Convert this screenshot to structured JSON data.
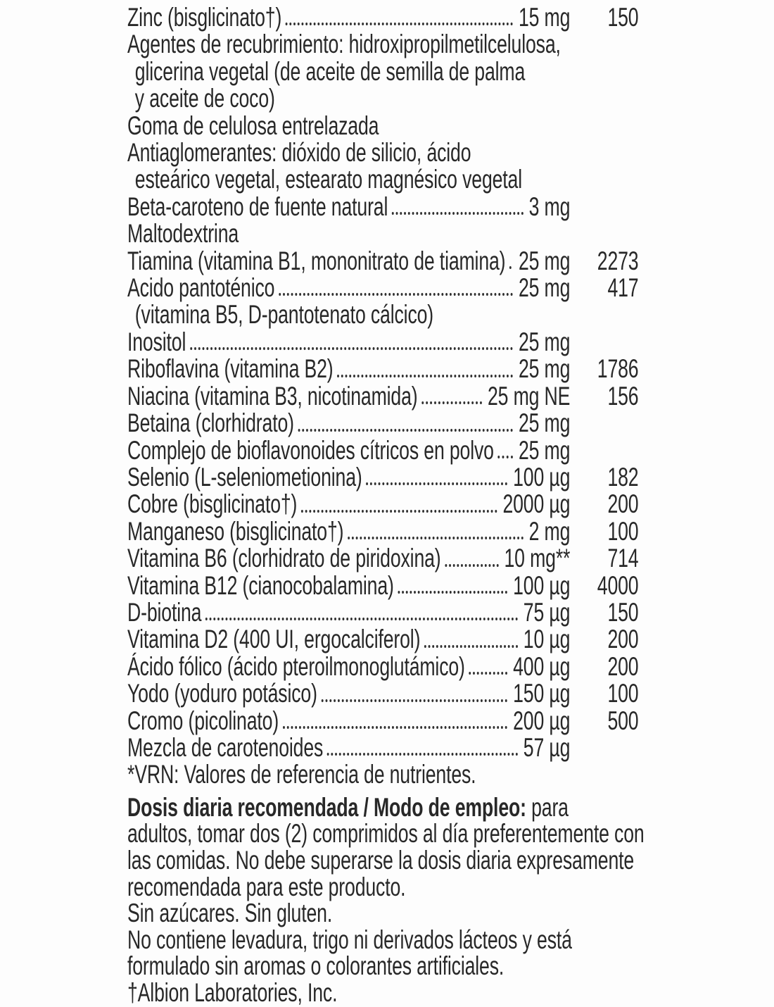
{
  "colors": {
    "text": "#282828",
    "background": "#fdfdfd"
  },
  "label": {
    "rows": [
      {
        "name": "Zinc (bisglicinato†)",
        "amount": "15 mg",
        "vrn": "150",
        "dots": true,
        "indent": false
      },
      {
        "name": "Agentes de recubrimiento: hidroxipropilmetilcelulosa,",
        "amount": "",
        "vrn": "",
        "dots": false,
        "indent": false
      },
      {
        "name": "glicerina vegetal (de aceite de semilla de palma",
        "amount": "",
        "vrn": "",
        "dots": false,
        "indent": true
      },
      {
        "name": "y aceite de coco)",
        "amount": "",
        "vrn": "",
        "dots": false,
        "indent": true
      },
      {
        "name": "Goma de celulosa entrelazada",
        "amount": "",
        "vrn": "",
        "dots": false,
        "indent": false
      },
      {
        "name": "Antiaglomerantes: dióxido de silicio, ácido",
        "amount": "",
        "vrn": "",
        "dots": false,
        "indent": false
      },
      {
        "name": "esteárico vegetal, estearato magnésico vegetal",
        "amount": "",
        "vrn": "",
        "dots": false,
        "indent": true
      },
      {
        "name": "Beta-caroteno de fuente natural",
        "amount": "3 mg",
        "vrn": "",
        "dots": true,
        "indent": false
      },
      {
        "name": "Maltodextrina",
        "amount": "",
        "vrn": "",
        "dots": false,
        "indent": false
      },
      {
        "name": "Tiamina (vitamina B1, mononitrato de tiamina)",
        "amount": "25 mg",
        "vrn": "2273",
        "dots": true,
        "indent": false
      },
      {
        "name": "Acido pantoténico",
        "amount": "25 mg",
        "vrn": "417",
        "dots": true,
        "indent": false
      },
      {
        "name": "(vitamina B5, D-pantotenato cálcico)",
        "amount": "",
        "vrn": "",
        "dots": false,
        "indent": true
      },
      {
        "name": "Inositol",
        "amount": "25 mg",
        "vrn": "",
        "dots": true,
        "indent": false
      },
      {
        "name": "Riboflavina (vitamina B2)",
        "amount": "25 mg",
        "vrn": "1786",
        "dots": true,
        "indent": false
      },
      {
        "name": "Niacina (vitamina B3, nicotinamida)",
        "amount": "25 mg NE",
        "vrn": "156",
        "dots": true,
        "indent": false
      },
      {
        "name": "Betaina (clorhidrato)",
        "amount": "25 mg",
        "vrn": "",
        "dots": true,
        "indent": false
      },
      {
        "name": "Complejo de bioflavonoides cítricos en polvo",
        "amount": "25 mg",
        "vrn": "",
        "dots": true,
        "indent": false
      },
      {
        "name": "Selenio (L-seleniometionina)",
        "amount": "100 µg",
        "vrn": "182",
        "dots": true,
        "indent": false
      },
      {
        "name": "Cobre (bisglicinato†)",
        "amount": "2000 µg",
        "vrn": "200",
        "dots": true,
        "indent": false
      },
      {
        "name": "Manganeso (bisglicinato†)",
        "amount": "2 mg",
        "vrn": "100",
        "dots": true,
        "indent": false
      },
      {
        "name": "Vitamina B6 (clorhidrato de piridoxina)",
        "amount": "10 mg**",
        "vrn": "714",
        "dots": true,
        "indent": false
      },
      {
        "name": "Vitamina B12 (cianocobalamina)",
        "amount": "100 µg",
        "vrn": "4000",
        "dots": true,
        "indent": false
      },
      {
        "name": "D-biotina",
        "amount": "75 µg",
        "vrn": "150",
        "dots": true,
        "indent": false
      },
      {
        "name": "Vitamina D2 (400 UI, ergocalciferol)",
        "amount": "10 µg",
        "vrn": "200",
        "dots": true,
        "indent": false
      },
      {
        "name": "Ácido fólico (ácido pteroilmonoglutámico)",
        "amount": "400 µg",
        "vrn": "200",
        "dots": true,
        "indent": false
      },
      {
        "name": "Yodo (yoduro potásico)",
        "amount": "150 µg",
        "vrn": "100",
        "dots": true,
        "indent": false
      },
      {
        "name": "Cromo (picolinato)",
        "amount": "200 µg",
        "vrn": "500",
        "dots": true,
        "indent": false
      },
      {
        "name": "Mezcla de carotenoides",
        "amount": "57 µg",
        "vrn": "",
        "dots": true,
        "indent": false
      },
      {
        "name": "*VRN: Valores de referencia de nutrientes.",
        "amount": "",
        "vrn": "",
        "dots": false,
        "indent": false
      }
    ],
    "dosage": {
      "heading": "Dosis diaria recomendada / Modo de empleo:",
      "heading_rest": " para",
      "lines": [
        "adultos, tomar dos (2) comprimidos al día preferentemente con",
        "las comidas. No debe superarse la dosis diaria expresamente",
        "recomendada para este producto."
      ]
    },
    "claims": [
      "Sin azúcares. Sin gluten.",
      "No contiene levadura, trigo ni derivados lácteos y está",
      "formulado sin aromas o colorantes artificiales."
    ],
    "trademark": "†Albion Laboratories, Inc."
  }
}
